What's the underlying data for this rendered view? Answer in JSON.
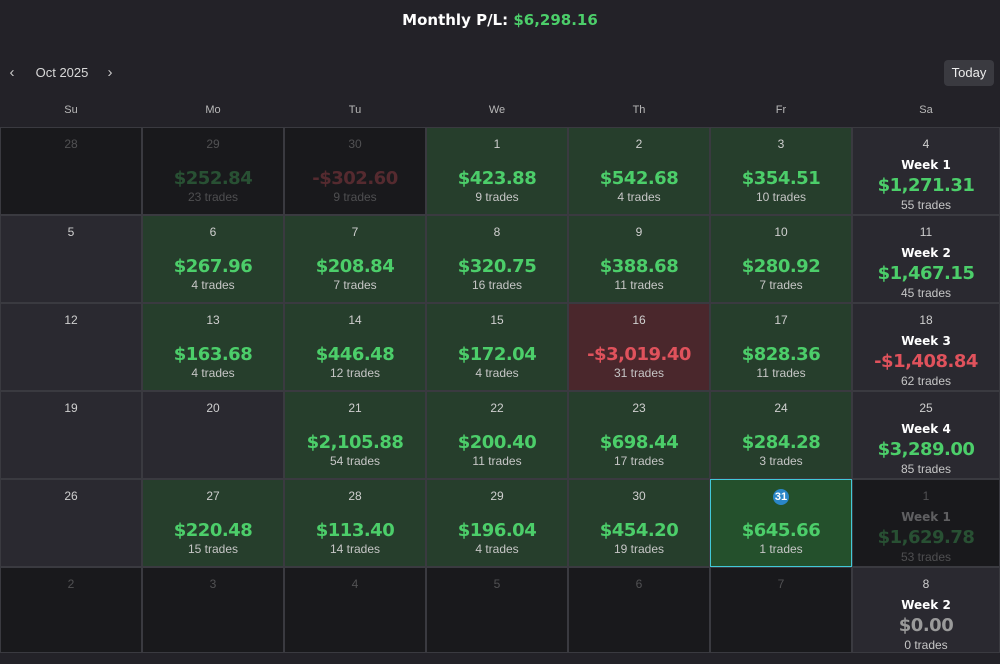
{
  "header": {
    "label": "Monthly P/L:",
    "value": "$6,298.16"
  },
  "nav": {
    "prev_icon": "‹",
    "next_icon": "›",
    "month": "Oct 2025",
    "today": "Today"
  },
  "weekdays": [
    "Su",
    "Mo",
    "Tu",
    "We",
    "Th",
    "Fr",
    "Sa"
  ],
  "colors": {
    "positive": "#4cce6a",
    "negative": "#e0525c",
    "today_ring": "#42c8d8"
  },
  "weeks": [
    {
      "days": [
        {
          "day": "28",
          "state": "dim",
          "amount": "",
          "trades": ""
        },
        {
          "day": "29",
          "state": "dim",
          "amount": "$252.84",
          "sign": "pos",
          "trades": "23 trades"
        },
        {
          "day": "30",
          "state": "dim",
          "amount": "-$302.60",
          "sign": "neg",
          "trades": "9 trades"
        },
        {
          "day": "1",
          "state": "green",
          "amount": "$423.88",
          "sign": "pos",
          "trades": "9 trades"
        },
        {
          "day": "2",
          "state": "green",
          "amount": "$542.68",
          "sign": "pos",
          "trades": "4 trades"
        },
        {
          "day": "3",
          "state": "green",
          "amount": "$354.51",
          "sign": "pos",
          "trades": "10 trades"
        }
      ],
      "summary": {
        "day": "4",
        "label": "Week 1",
        "amount": "$1,271.31",
        "sign": "pos",
        "trades": "55 trades",
        "dim": false
      }
    },
    {
      "days": [
        {
          "day": "5",
          "state": "neutral",
          "amount": "",
          "trades": ""
        },
        {
          "day": "6",
          "state": "green",
          "amount": "$267.96",
          "sign": "pos",
          "trades": "4 trades"
        },
        {
          "day": "7",
          "state": "green",
          "amount": "$208.84",
          "sign": "pos",
          "trades": "7 trades"
        },
        {
          "day": "8",
          "state": "green",
          "amount": "$320.75",
          "sign": "pos",
          "trades": "16 trades"
        },
        {
          "day": "9",
          "state": "green",
          "amount": "$388.68",
          "sign": "pos",
          "trades": "11 trades"
        },
        {
          "day": "10",
          "state": "green",
          "amount": "$280.92",
          "sign": "pos",
          "trades": "7 trades"
        }
      ],
      "summary": {
        "day": "11",
        "label": "Week 2",
        "amount": "$1,467.15",
        "sign": "pos",
        "trades": "45 trades",
        "dim": false
      }
    },
    {
      "days": [
        {
          "day": "12",
          "state": "neutral",
          "amount": "",
          "trades": ""
        },
        {
          "day": "13",
          "state": "green",
          "amount": "$163.68",
          "sign": "pos",
          "trades": "4 trades"
        },
        {
          "day": "14",
          "state": "green",
          "amount": "$446.48",
          "sign": "pos",
          "trades": "12 trades"
        },
        {
          "day": "15",
          "state": "green",
          "amount": "$172.04",
          "sign": "pos",
          "trades": "4 trades"
        },
        {
          "day": "16",
          "state": "red",
          "amount": "-$3,019.40",
          "sign": "neg",
          "trades": "31 trades"
        },
        {
          "day": "17",
          "state": "green",
          "amount": "$828.36",
          "sign": "pos",
          "trades": "11 trades"
        }
      ],
      "summary": {
        "day": "18",
        "label": "Week 3",
        "amount": "-$1,408.84",
        "sign": "neg",
        "trades": "62 trades",
        "dim": false
      }
    },
    {
      "days": [
        {
          "day": "19",
          "state": "neutral",
          "amount": "",
          "trades": ""
        },
        {
          "day": "20",
          "state": "neutral",
          "amount": "",
          "trades": ""
        },
        {
          "day": "21",
          "state": "green",
          "amount": "$2,105.88",
          "sign": "pos",
          "trades": "54 trades"
        },
        {
          "day": "22",
          "state": "green",
          "amount": "$200.40",
          "sign": "pos",
          "trades": "11 trades"
        },
        {
          "day": "23",
          "state": "green",
          "amount": "$698.44",
          "sign": "pos",
          "trades": "17 trades"
        },
        {
          "day": "24",
          "state": "green",
          "amount": "$284.28",
          "sign": "pos",
          "trades": "3 trades"
        }
      ],
      "summary": {
        "day": "25",
        "label": "Week 4",
        "amount": "$3,289.00",
        "sign": "pos",
        "trades": "85 trades",
        "dim": false
      }
    },
    {
      "days": [
        {
          "day": "26",
          "state": "neutral",
          "amount": "",
          "trades": ""
        },
        {
          "day": "27",
          "state": "green",
          "amount": "$220.48",
          "sign": "pos",
          "trades": "15 trades"
        },
        {
          "day": "28",
          "state": "green",
          "amount": "$113.40",
          "sign": "pos",
          "trades": "14 trades"
        },
        {
          "day": "29",
          "state": "green",
          "amount": "$196.04",
          "sign": "pos",
          "trades": "4 trades"
        },
        {
          "day": "30",
          "state": "green",
          "amount": "$454.20",
          "sign": "pos",
          "trades": "19 trades"
        },
        {
          "day": "31",
          "state": "today",
          "amount": "$645.66",
          "sign": "pos",
          "trades": "1 trades"
        }
      ],
      "summary": {
        "day": "1",
        "label": "Week 1",
        "amount": "$1,629.78",
        "sign": "pos",
        "trades": "53 trades",
        "dim": true
      }
    },
    {
      "days": [
        {
          "day": "2",
          "state": "dim",
          "amount": "",
          "trades": ""
        },
        {
          "day": "3",
          "state": "dim",
          "amount": "",
          "trades": ""
        },
        {
          "day": "4",
          "state": "dim",
          "amount": "",
          "trades": ""
        },
        {
          "day": "5",
          "state": "dim",
          "amount": "",
          "trades": ""
        },
        {
          "day": "6",
          "state": "dim",
          "amount": "",
          "trades": ""
        },
        {
          "day": "7",
          "state": "dim",
          "amount": "",
          "trades": ""
        }
      ],
      "summary": {
        "day": "8",
        "label": "Week 2",
        "amount": "$0.00",
        "sign": "zero",
        "trades": "0 trades",
        "dim": false
      }
    }
  ]
}
